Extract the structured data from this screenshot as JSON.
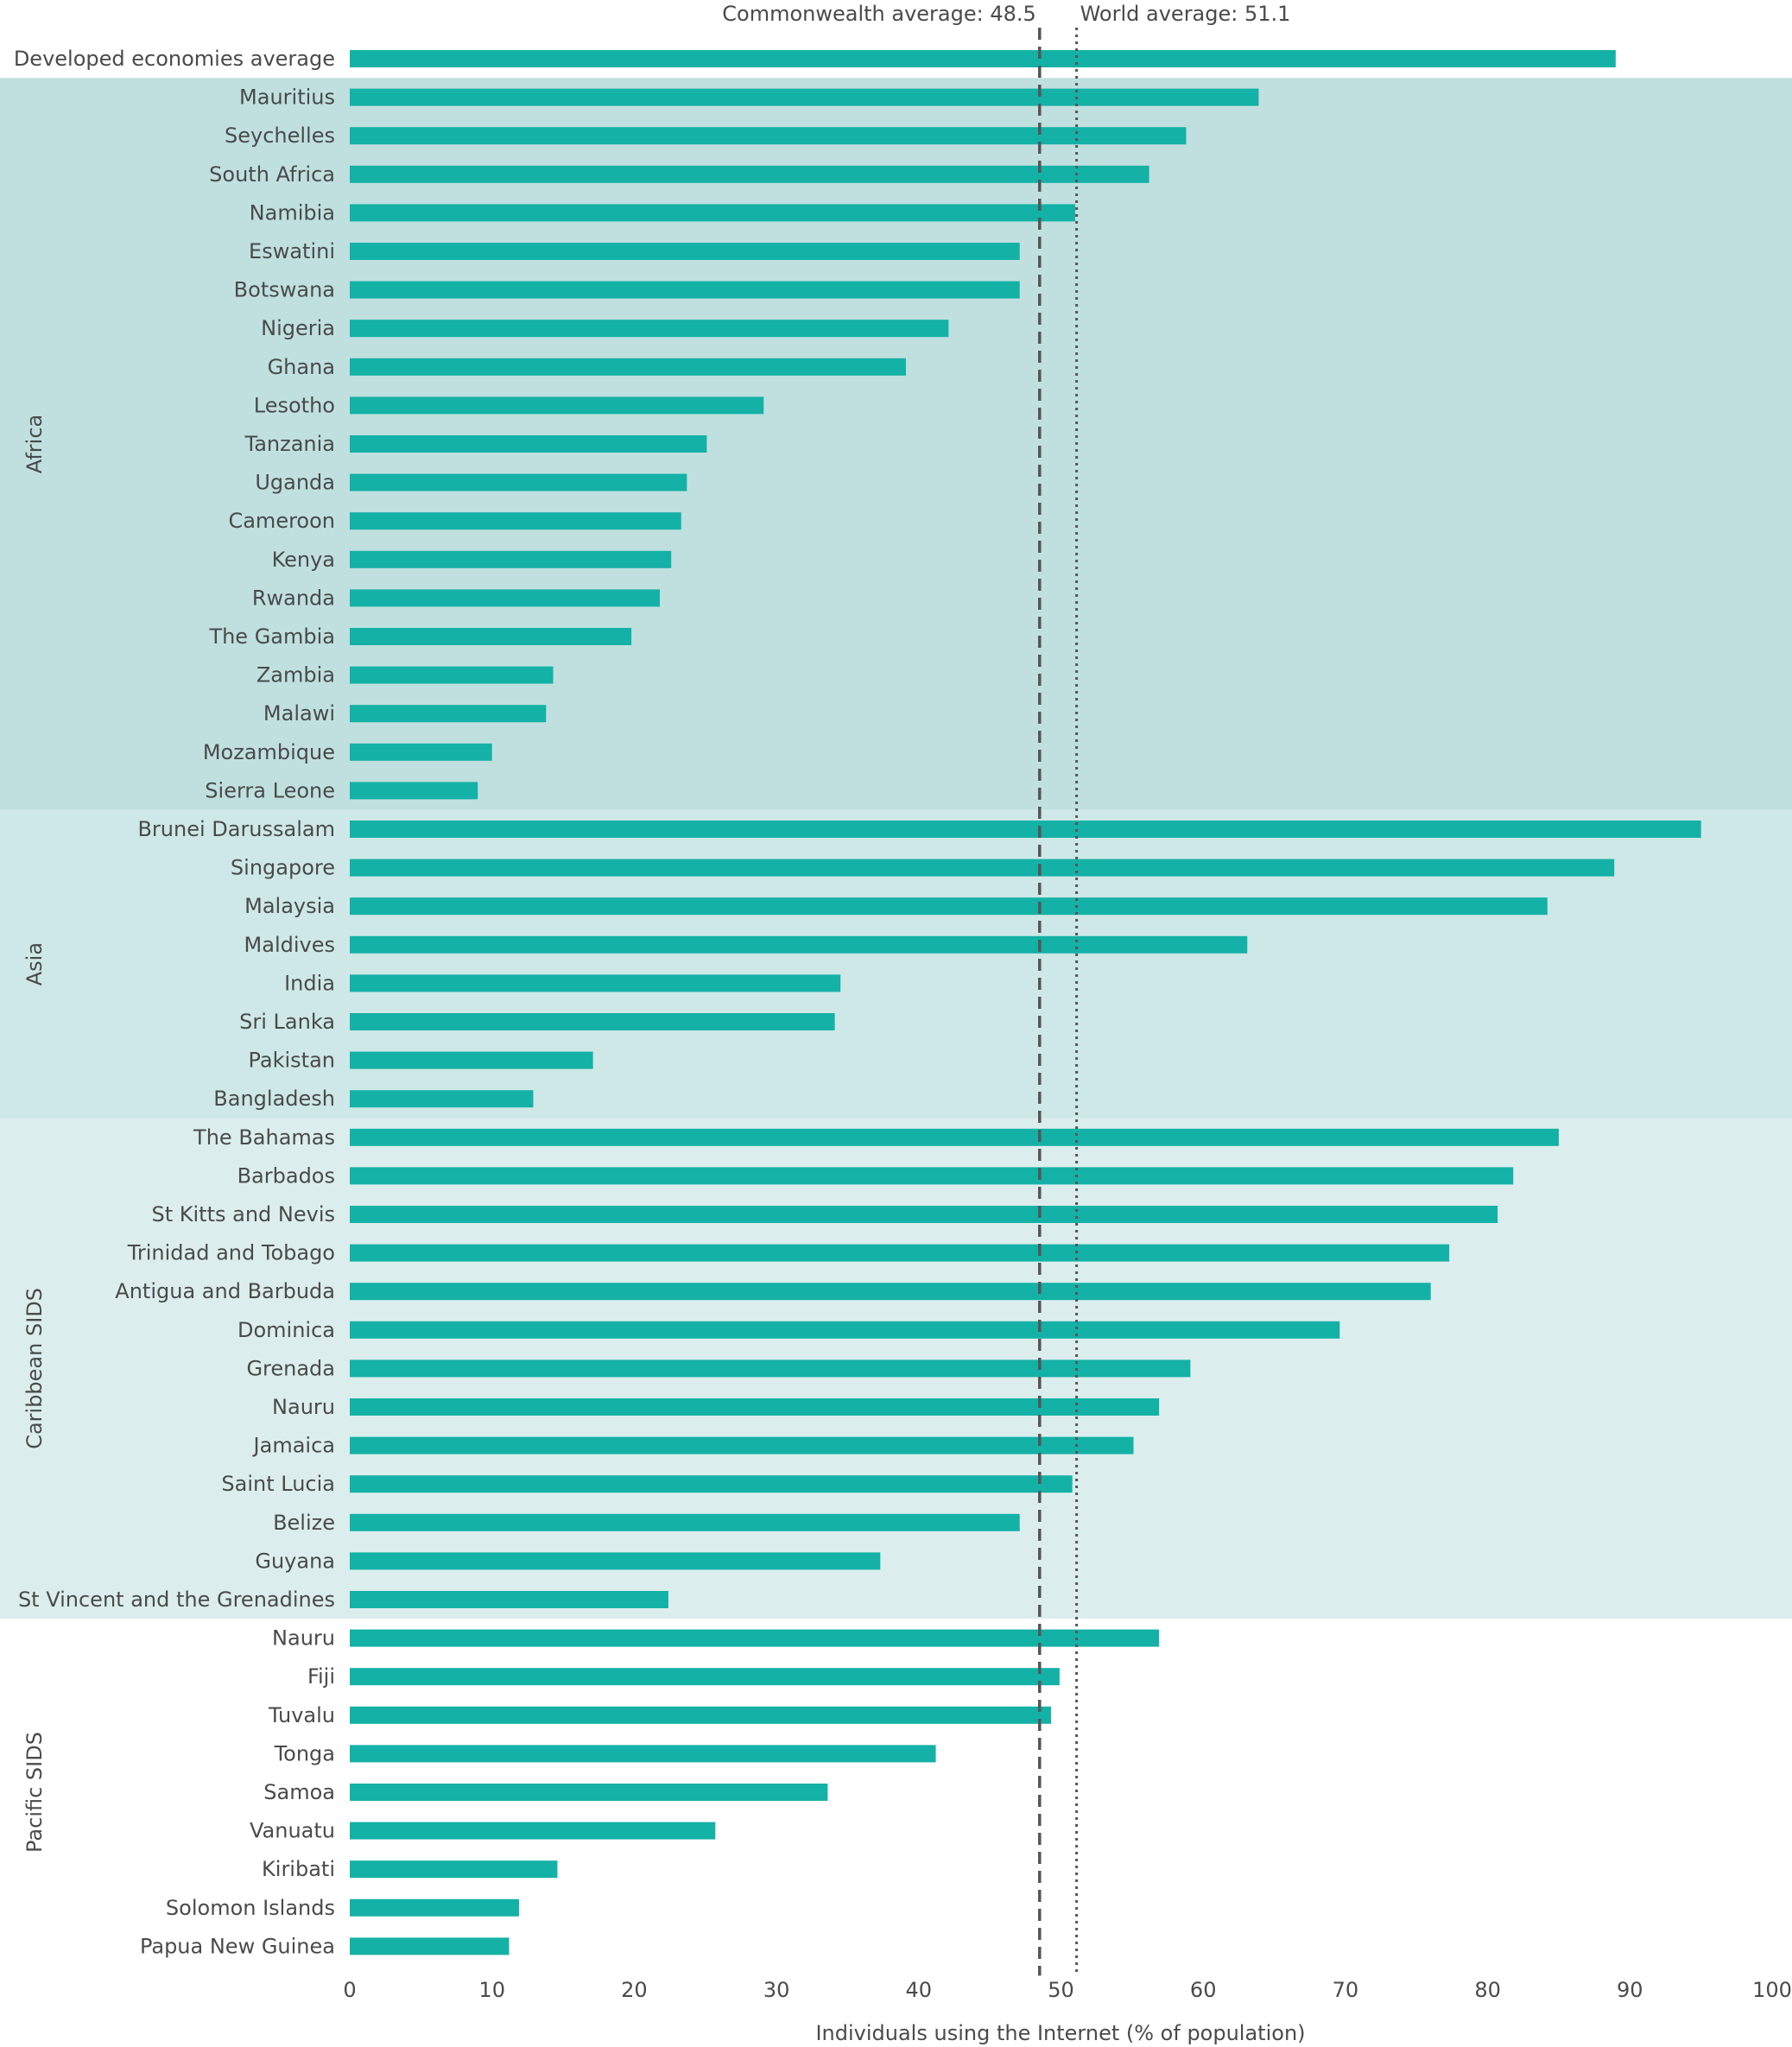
{
  "colors": {
    "bar": "#14b1a6",
    "band_africa": "#bfe0df",
    "band_asia": "#cde8e6",
    "band_caribbean": "#dbeeed",
    "band_pacific": "#ffffff",
    "text": "#4a4a4a",
    "ref_line": "#555555"
  },
  "chart_data": {
    "type": "bar",
    "orientation": "horizontal",
    "xlabel": "Individuals using the Internet (% of population)",
    "xlim": [
      0,
      100
    ],
    "xticks": [
      0,
      10,
      20,
      30,
      40,
      50,
      60,
      70,
      80,
      90,
      100
    ],
    "grid": false,
    "reference_lines": [
      {
        "label": "Commonwealth average: 48.5",
        "value": 48.5,
        "style": "dashed"
      },
      {
        "label": "World average: 51.1",
        "value": 51.1,
        "style": "dotted"
      }
    ],
    "top_item": {
      "label": "Developed economies average",
      "value": 89
    },
    "groups": [
      {
        "name": "Africa",
        "band": "band_africa",
        "items": [
          {
            "label": "Mauritius",
            "value": 63.9
          },
          {
            "label": "Seychelles",
            "value": 58.8
          },
          {
            "label": "South Africa",
            "value": 56.2
          },
          {
            "label": "Namibia",
            "value": 51.0
          },
          {
            "label": "Eswatini",
            "value": 47.1
          },
          {
            "label": "Botswana",
            "value": 47.1
          },
          {
            "label": "Nigeria",
            "value": 42.1
          },
          {
            "label": "Ghana",
            "value": 39.1
          },
          {
            "label": "Lesotho",
            "value": 29.1
          },
          {
            "label": "Tanzania",
            "value": 25.1
          },
          {
            "label": "Uganda",
            "value": 23.7
          },
          {
            "label": "Cameroon",
            "value": 23.3
          },
          {
            "label": "Kenya",
            "value": 22.6
          },
          {
            "label": "Rwanda",
            "value": 21.8
          },
          {
            "label": "The Gambia",
            "value": 19.8
          },
          {
            "label": "Zambia",
            "value": 14.3
          },
          {
            "label": "Malawi",
            "value": 13.8
          },
          {
            "label": "Mozambique",
            "value": 10.0
          },
          {
            "label": "Sierra Leone",
            "value": 9.0
          }
        ]
      },
      {
        "name": "Asia",
        "band": "band_asia",
        "items": [
          {
            "label": "Brunei Darussalam",
            "value": 95.0
          },
          {
            "label": "Singapore",
            "value": 88.9
          },
          {
            "label": "Malaysia",
            "value": 84.2
          },
          {
            "label": "Maldives",
            "value": 63.1
          },
          {
            "label": "India",
            "value": 34.5
          },
          {
            "label": "Sri Lanka",
            "value": 34.1
          },
          {
            "label": "Pakistan",
            "value": 17.1
          },
          {
            "label": "Bangladesh",
            "value": 12.9
          }
        ]
      },
      {
        "name": "Caribbean SIDS",
        "band": "band_caribbean",
        "items": [
          {
            "label": "The Bahamas",
            "value": 85.0
          },
          {
            "label": "Barbados",
            "value": 81.8
          },
          {
            "label": "St Kitts and Nevis",
            "value": 80.7
          },
          {
            "label": "Trinidad and Tobago",
            "value": 77.3
          },
          {
            "label": "Antigua and Barbuda",
            "value": 76.0
          },
          {
            "label": "Dominica",
            "value": 69.6
          },
          {
            "label": "Grenada",
            "value": 59.1
          },
          {
            "label": "Nauru",
            "value": 56.9
          },
          {
            "label": "Jamaica",
            "value": 55.1
          },
          {
            "label": "Saint Lucia",
            "value": 50.8
          },
          {
            "label": "Belize",
            "value": 47.1
          },
          {
            "label": "Guyana",
            "value": 37.3
          },
          {
            "label": "St Vincent and the Grenadines",
            "value": 22.4
          }
        ]
      },
      {
        "name": "Pacific SIDS",
        "band": "band_pacific",
        "items": [
          {
            "label": "Nauru",
            "value": 56.9
          },
          {
            "label": "Fiji",
            "value": 49.9
          },
          {
            "label": "Tuvalu",
            "value": 49.3
          },
          {
            "label": "Tonga",
            "value": 41.2
          },
          {
            "label": "Samoa",
            "value": 33.6
          },
          {
            "label": "Vanuatu",
            "value": 25.7
          },
          {
            "label": "Kiribati",
            "value": 14.6
          },
          {
            "label": "Solomon Islands",
            "value": 11.9
          },
          {
            "label": "Papua New Guinea",
            "value": 11.2
          }
        ]
      }
    ]
  }
}
